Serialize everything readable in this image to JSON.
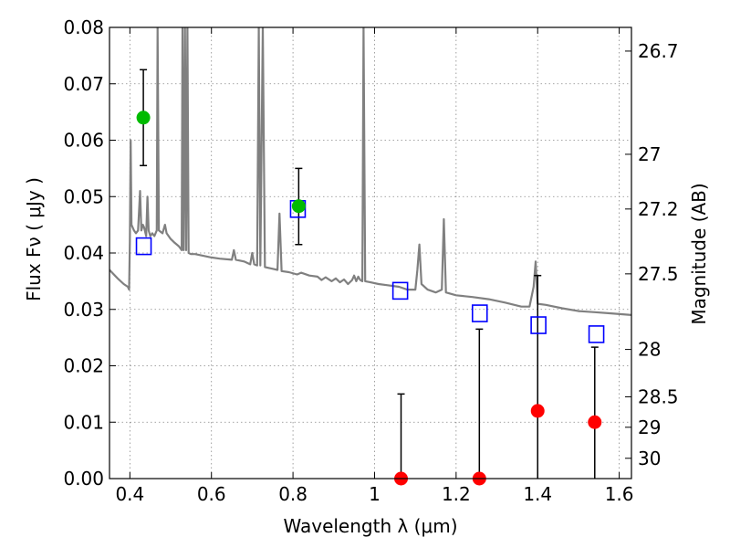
{
  "chart_data": {
    "type": "scatter",
    "title": "",
    "xlabel": "Wavelength  λ (μm)",
    "ylabel": "Flux  Fν  ( μJy )",
    "ylabel_right": "Magnitude (AB)",
    "xlim": [
      0.35,
      1.63
    ],
    "ylim": [
      0,
      0.08
    ],
    "grid": true,
    "x_ticks": [
      0.4,
      0.6,
      0.8,
      1.0,
      1.2,
      1.4,
      1.6
    ],
    "x_tick_labels": [
      "0.4",
      "0.6",
      "0.8",
      "1",
      "1.2",
      "1.4",
      "1.6"
    ],
    "y_ticks": [
      0,
      0.01,
      0.02,
      0.03,
      0.04,
      0.05,
      0.06,
      0.07,
      0.08
    ],
    "y_tick_labels": [
      "0.00",
      "0.01",
      "0.02",
      "0.03",
      "0.04",
      "0.05",
      "0.06",
      "0.07",
      "0.08"
    ],
    "right_ticks": [
      {
        "flux": 0.0758,
        "label": "26.7"
      },
      {
        "flux": 0.0575,
        "label": "27"
      },
      {
        "flux": 0.0478,
        "label": "27.2"
      },
      {
        "flux": 0.0363,
        "label": "27.5"
      },
      {
        "flux": 0.0229,
        "label": "28"
      },
      {
        "flux": 0.0145,
        "label": "28.5"
      },
      {
        "flux": 0.0091,
        "label": "29"
      },
      {
        "flux": 0.0036,
        "label": "30"
      }
    ],
    "colors": {
      "spectrum": "#808080",
      "model_marker": "#0000ff",
      "detection": "#00bb00",
      "non_detection": "#ff0000",
      "errorbar": "#000000"
    },
    "series": [
      {
        "style": "line",
        "points": [
          [
            0.35,
            0.037
          ],
          [
            0.37,
            0.0355
          ],
          [
            0.385,
            0.0345
          ],
          [
            0.395,
            0.034
          ],
          [
            0.398,
            0.0335
          ],
          [
            0.4,
            0.042
          ],
          [
            0.402,
            0.06
          ],
          [
            0.404,
            0.045
          ],
          [
            0.41,
            0.044
          ],
          [
            0.415,
            0.0435
          ],
          [
            0.42,
            0.044
          ],
          [
            0.425,
            0.051
          ],
          [
            0.428,
            0.044
          ],
          [
            0.432,
            0.045
          ],
          [
            0.435,
            0.0445
          ],
          [
            0.44,
            0.043
          ],
          [
            0.443,
            0.05
          ],
          [
            0.446,
            0.044
          ],
          [
            0.45,
            0.043
          ],
          [
            0.455,
            0.0435
          ],
          [
            0.46,
            0.043
          ],
          [
            0.466,
            0.044
          ],
          [
            0.468,
            0.08
          ],
          [
            0.471,
            0.044
          ],
          [
            0.48,
            0.0435
          ],
          [
            0.486,
            0.045
          ],
          [
            0.49,
            0.0435
          ],
          [
            0.5,
            0.0425
          ],
          [
            0.51,
            0.0418
          ],
          [
            0.52,
            0.0412
          ],
          [
            0.527,
            0.0405
          ],
          [
            0.529,
            0.08
          ],
          [
            0.532,
            0.0405
          ],
          [
            0.535,
            0.08
          ],
          [
            0.538,
            0.0405
          ],
          [
            0.541,
            0.08
          ],
          [
            0.544,
            0.04
          ],
          [
            0.55,
            0.0398
          ],
          [
            0.56,
            0.0398
          ],
          [
            0.58,
            0.0395
          ],
          [
            0.6,
            0.0392
          ],
          [
            0.62,
            0.039
          ],
          [
            0.65,
            0.0388
          ],
          [
            0.655,
            0.0405
          ],
          [
            0.66,
            0.0388
          ],
          [
            0.68,
            0.0385
          ],
          [
            0.695,
            0.038
          ],
          [
            0.7,
            0.04
          ],
          [
            0.705,
            0.038
          ],
          [
            0.712,
            0.0378
          ],
          [
            0.716,
            0.08
          ],
          [
            0.72,
            0.0378
          ],
          [
            0.726,
            0.08
          ],
          [
            0.731,
            0.0375
          ],
          [
            0.75,
            0.0372
          ],
          [
            0.762,
            0.037
          ],
          [
            0.767,
            0.047
          ],
          [
            0.772,
            0.0368
          ],
          [
            0.79,
            0.0366
          ],
          [
            0.81,
            0.0362
          ],
          [
            0.82,
            0.0365
          ],
          [
            0.84,
            0.036
          ],
          [
            0.86,
            0.0358
          ],
          [
            0.87,
            0.0352
          ],
          [
            0.88,
            0.0357
          ],
          [
            0.895,
            0.035
          ],
          [
            0.905,
            0.0355
          ],
          [
            0.915,
            0.0348
          ],
          [
            0.925,
            0.0353
          ],
          [
            0.935,
            0.0345
          ],
          [
            0.945,
            0.0352
          ],
          [
            0.95,
            0.036
          ],
          [
            0.955,
            0.035
          ],
          [
            0.96,
            0.0358
          ],
          [
            0.965,
            0.0352
          ],
          [
            0.97,
            0.035
          ],
          [
            0.973,
            0.08
          ],
          [
            0.977,
            0.035
          ],
          [
            0.99,
            0.0348
          ],
          [
            1.01,
            0.0345
          ],
          [
            1.03,
            0.0343
          ],
          [
            1.06,
            0.034
          ],
          [
            1.08,
            0.0335
          ],
          [
            1.1,
            0.0335
          ],
          [
            1.105,
            0.037
          ],
          [
            1.11,
            0.0415
          ],
          [
            1.115,
            0.0345
          ],
          [
            1.13,
            0.0335
          ],
          [
            1.15,
            0.033
          ],
          [
            1.165,
            0.0335
          ],
          [
            1.17,
            0.046
          ],
          [
            1.175,
            0.033
          ],
          [
            1.2,
            0.0325
          ],
          [
            1.24,
            0.0322
          ],
          [
            1.28,
            0.0318
          ],
          [
            1.32,
            0.0312
          ],
          [
            1.36,
            0.0305
          ],
          [
            1.38,
            0.0305
          ],
          [
            1.39,
            0.034
          ],
          [
            1.395,
            0.0385
          ],
          [
            1.4,
            0.031
          ],
          [
            1.42,
            0.0308
          ],
          [
            1.46,
            0.0302
          ],
          [
            1.5,
            0.0297
          ],
          [
            1.54,
            0.0295
          ],
          [
            1.58,
            0.0293
          ],
          [
            1.63,
            0.029
          ]
        ]
      },
      {
        "style": "open-square",
        "points": [
          [
            0.434,
            0.0412
          ],
          [
            0.812,
            0.0478
          ],
          [
            1.063,
            0.0333
          ],
          [
            1.258,
            0.0293
          ],
          [
            1.402,
            0.0272
          ],
          [
            1.544,
            0.0256
          ]
        ]
      },
      {
        "style": "filled-circle-green",
        "points": [
          {
            "x": 0.433,
            "y": 0.064,
            "ylo": 0.0555,
            "yhi": 0.0725
          },
          {
            "x": 0.814,
            "y": 0.0483,
            "ylo": 0.0415,
            "yhi": 0.055
          }
        ]
      },
      {
        "style": "filled-circle-red",
        "points": [
          {
            "x": 1.065,
            "y": 0.0,
            "ylo": 0.0,
            "yhi": 0.015
          },
          {
            "x": 1.257,
            "y": 0.0,
            "ylo": 0.0,
            "yhi": 0.0265
          },
          {
            "x": 1.4,
            "y": 0.012,
            "ylo": 0.0,
            "yhi": 0.036
          },
          {
            "x": 1.54,
            "y": 0.01,
            "ylo": 0.0,
            "yhi": 0.0233
          }
        ]
      }
    ]
  }
}
